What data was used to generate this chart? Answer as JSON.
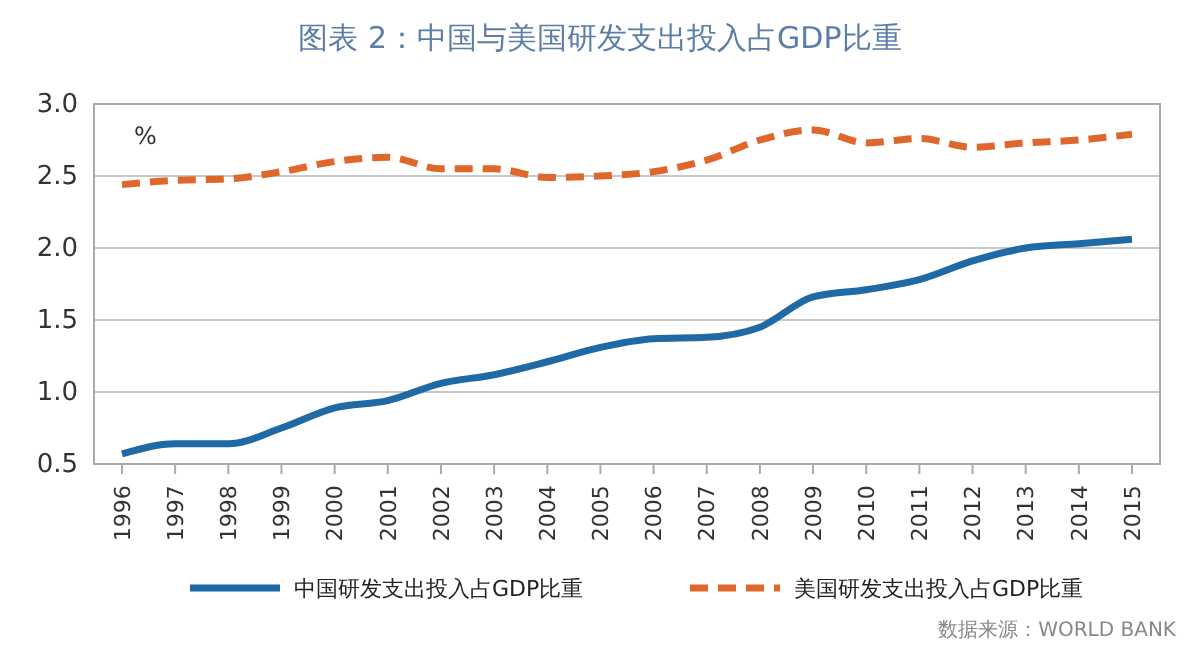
{
  "chart_data": {
    "type": "line",
    "title": "图表 2：中国与美国研发支出投入占GDP比重",
    "ylabel": "%",
    "categories": [
      "1996",
      "1997",
      "1998",
      "1999",
      "2000",
      "2001",
      "2002",
      "2003",
      "2004",
      "2005",
      "2006",
      "2007",
      "2008",
      "2009",
      "2010",
      "2011",
      "2012",
      "2013",
      "2014",
      "2015"
    ],
    "series": [
      {
        "name": "中国研发支出投入占GDP比重",
        "color": "#1f6aa5",
        "line_style": "solid",
        "values": [
          0.57,
          0.64,
          0.64,
          0.75,
          0.89,
          0.94,
          1.06,
          1.12,
          1.21,
          1.31,
          1.37,
          1.38,
          1.45,
          1.66,
          1.71,
          1.78,
          1.91,
          2.0,
          2.03,
          2.06
        ]
      },
      {
        "name": "美国研发支出投入占GDP比重",
        "color": "#e0672c",
        "line_style": "dashed",
        "values": [
          2.44,
          2.47,
          2.48,
          2.53,
          2.6,
          2.63,
          2.55,
          2.55,
          2.49,
          2.5,
          2.53,
          2.61,
          2.75,
          2.82,
          2.73,
          2.76,
          2.7,
          2.73,
          2.75,
          2.79
        ]
      }
    ],
    "ylim": [
      0.5,
      3.0
    ],
    "yticks": [
      {
        "value": 0.5,
        "label": "0.5"
      },
      {
        "value": 1.0,
        "label": "1.0"
      },
      {
        "value": 1.5,
        "label": "1.5"
      },
      {
        "value": 2.0,
        "label": "2.0"
      },
      {
        "value": 2.5,
        "label": "2.5"
      },
      {
        "value": 3.0,
        "label": "3.0"
      }
    ],
    "grid": "y",
    "legend": "bottom",
    "marker": "none",
    "annotations": [
      "数据来源：WORLD BANK"
    ]
  }
}
